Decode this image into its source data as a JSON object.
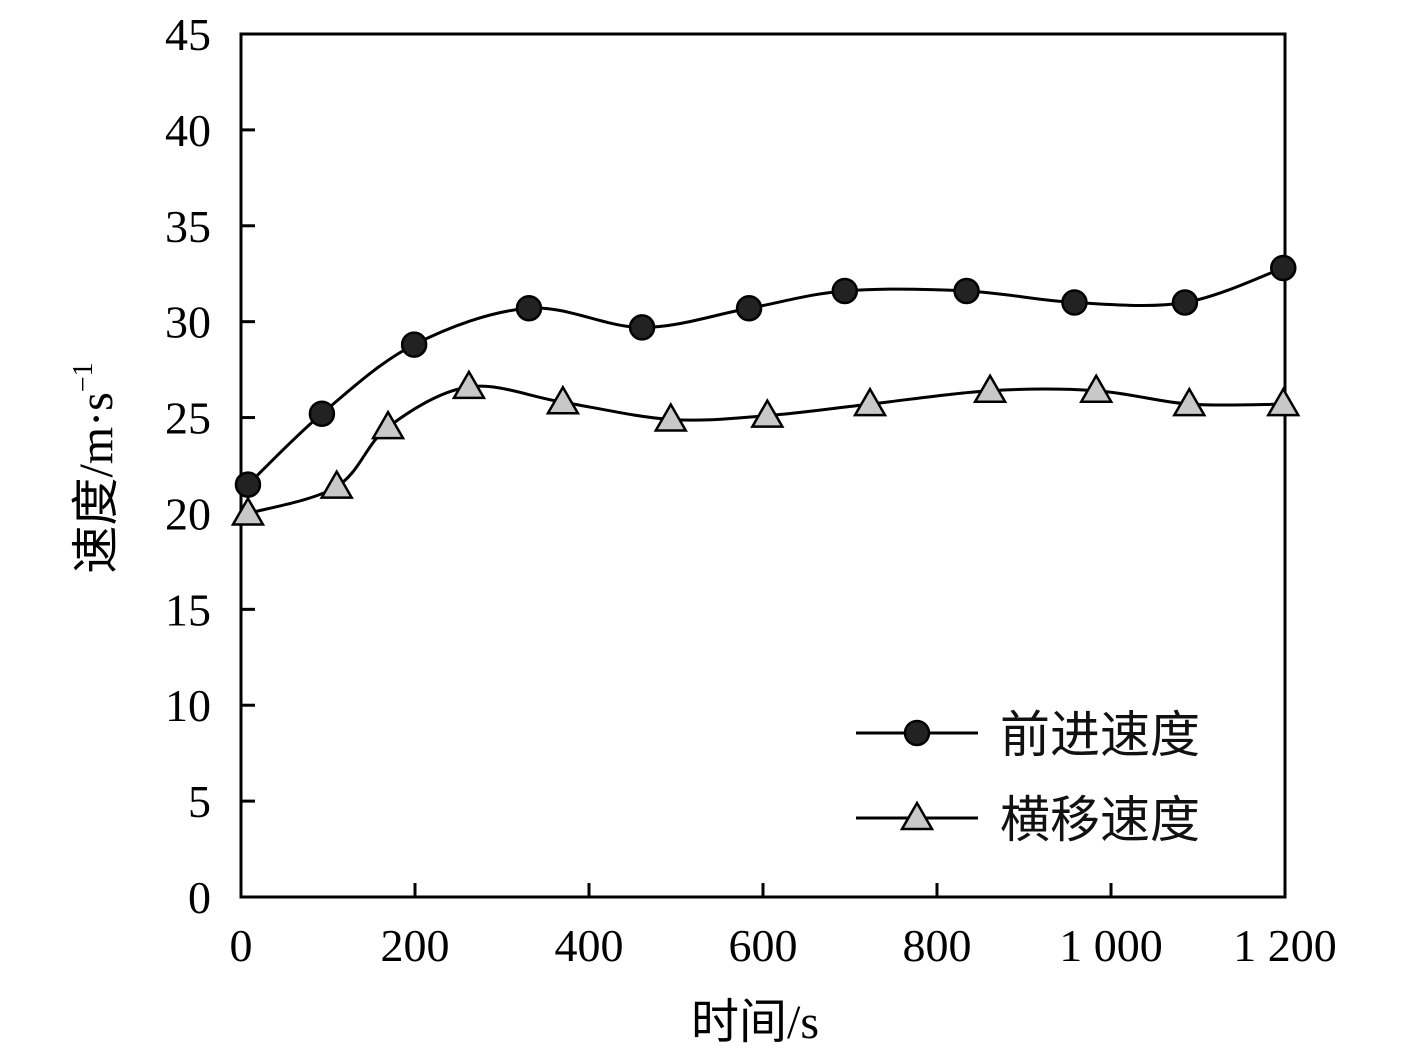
{
  "chart_data": {
    "type": "line",
    "xlabel": "时间/s",
    "ylabel": "速度/m·s",
    "ylabel_sup": "−1",
    "xlim": [
      0,
      1200
    ],
    "ylim": [
      0,
      45
    ],
    "x_ticks": [
      0,
      200,
      400,
      600,
      800,
      1000,
      1200
    ],
    "x_tick_labels": [
      "0",
      "200",
      "400",
      "600",
      "800",
      "1 000",
      "1 200"
    ],
    "y_ticks": [
      0,
      5,
      10,
      15,
      20,
      25,
      30,
      35,
      40,
      45
    ],
    "y_tick_labels": [
      "0",
      "5",
      "10",
      "15",
      "20",
      "25",
      "30",
      "35",
      "40",
      "45"
    ],
    "grid": false,
    "legend_position": "bottom-right",
    "series": [
      {
        "name": "前进速度",
        "marker": "circle",
        "marker_color": "#222222",
        "x": [
          8,
          93,
          199,
          331,
          461,
          584,
          694,
          834,
          958,
          1085,
          1198
        ],
        "y": [
          21.5,
          25.2,
          28.8,
          30.7,
          29.7,
          30.7,
          31.6,
          31.6,
          31.0,
          31.0,
          32.8
        ]
      },
      {
        "name": "横移速度",
        "marker": "triangle",
        "marker_color": "#c8c8c8",
        "x": [
          8,
          110,
          169,
          262,
          370,
          494,
          605,
          723,
          861,
          983,
          1090,
          1198
        ],
        "y": [
          20.0,
          21.4,
          24.5,
          26.6,
          25.8,
          24.9,
          25.1,
          25.7,
          26.4,
          26.4,
          25.7,
          25.7
        ]
      }
    ]
  }
}
